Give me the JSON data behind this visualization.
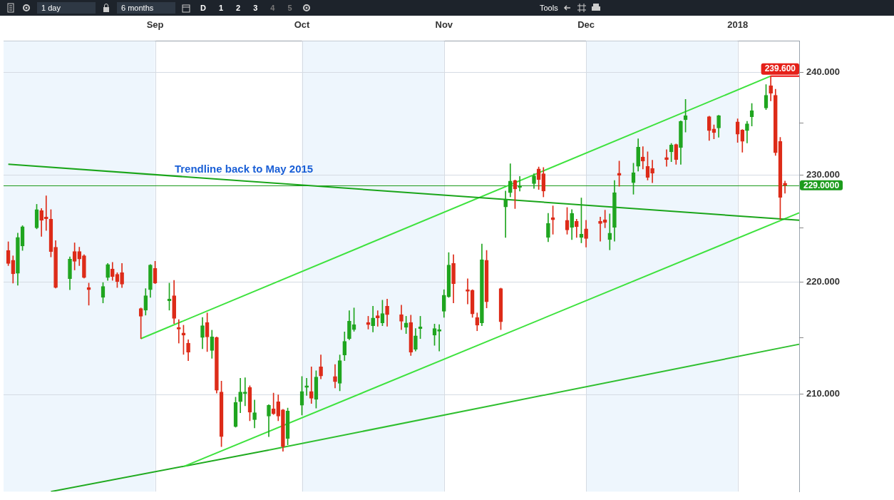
{
  "chart_data": {
    "type": "candlestick",
    "x": [
      "2017-08-01",
      "2017-08-02",
      "2017-08-03",
      "2017-08-04",
      "2017-08-07",
      "2017-08-08",
      "2017-08-09",
      "2017-08-10",
      "2017-08-11",
      "2017-08-14",
      "2017-08-15",
      "2017-08-16",
      "2017-08-17",
      "2017-08-18",
      "2017-08-21",
      "2017-08-22",
      "2017-08-23",
      "2017-08-24",
      "2017-08-25",
      "2017-08-29",
      "2017-08-30",
      "2017-08-31",
      "2017-09-01",
      "2017-09-04",
      "2017-09-05",
      "2017-09-06",
      "2017-09-07",
      "2017-09-08",
      "2017-09-11",
      "2017-09-12",
      "2017-09-13",
      "2017-09-14",
      "2017-09-15",
      "2017-09-18",
      "2017-09-19",
      "2017-09-20",
      "2017-09-21",
      "2017-09-22",
      "2017-09-25",
      "2017-09-26",
      "2017-09-27",
      "2017-09-28",
      "2017-09-29",
      "2017-10-02",
      "2017-10-03",
      "2017-10-04",
      "2017-10-05",
      "2017-10-06",
      "2017-10-09",
      "2017-10-10",
      "2017-10-11",
      "2017-10-12",
      "2017-10-13",
      "2017-10-16",
      "2017-10-17",
      "2017-10-18",
      "2017-10-19",
      "2017-10-20",
      "2017-10-23",
      "2017-10-24",
      "2017-10-25",
      "2017-10-26",
      "2017-10-27",
      "2017-10-30",
      "2017-10-31",
      "2017-11-01",
      "2017-11-02",
      "2017-11-03",
      "2017-11-06",
      "2017-11-07",
      "2017-11-08",
      "2017-11-09",
      "2017-11-10",
      "2017-11-13",
      "2017-11-14",
      "2017-11-15",
      "2017-11-16",
      "2017-11-17",
      "2017-11-20",
      "2017-11-21",
      "2017-11-22",
      "2017-11-23",
      "2017-11-24",
      "2017-11-27",
      "2017-11-28",
      "2017-11-29",
      "2017-11-30",
      "2017-12-01",
      "2017-12-04",
      "2017-12-05",
      "2017-12-06",
      "2017-12-07",
      "2017-12-08",
      "2017-12-11",
      "2017-12-12",
      "2017-12-13",
      "2017-12-14",
      "2017-12-15",
      "2017-12-18",
      "2017-12-19",
      "2017-12-20",
      "2017-12-21",
      "2017-12-22",
      "2017-12-27",
      "2017-12-28",
      "2017-12-29",
      "2018-01-02",
      "2018-01-03",
      "2018-01-04",
      "2018-01-05",
      "2018-01-08",
      "2018-01-09",
      "2018-01-10",
      "2018-01-11",
      "2018-01-12"
    ],
    "ohlc": [
      [
        222.9,
        223.7,
        221.5,
        221.7
      ],
      [
        222.0,
        222.4,
        219.9,
        220.75
      ],
      [
        220.8,
        224.5,
        219.7,
        224.1
      ],
      [
        223.3,
        225.2,
        222.9,
        225.1
      ],
      [
        225.0,
        227.2,
        224.9,
        226.7
      ],
      [
        226.6,
        226.8,
        224.2,
        225.7
      ],
      [
        226.0,
        228.0,
        224.75,
        225.85
      ],
      [
        225.8,
        226.7,
        222.3,
        222.8
      ],
      [
        223.2,
        223.8,
        219.45,
        219.5
      ],
      [
        220.3,
        222.3,
        219.3,
        222.1
      ],
      [
        222.8,
        223.6,
        221.1,
        221.9
      ],
      [
        222.8,
        223.2,
        221.5,
        222.1
      ],
      [
        222.4,
        222.5,
        220.35,
        220.4
      ],
      [
        219.5,
        219.9,
        217.9,
        219.3
      ],
      [
        218.6,
        219.95,
        218.1,
        219.6
      ],
      [
        220.4,
        221.7,
        220.15,
        221.6
      ],
      [
        221.2,
        221.8,
        220.15,
        220.5
      ],
      [
        220.7,
        220.85,
        219.5,
        220.05
      ],
      [
        220.85,
        221.7,
        219.5,
        219.8
      ],
      [
        217.6,
        217.65,
        214.9,
        216.9
      ],
      [
        217.45,
        219.4,
        217.0,
        218.75
      ],
      [
        219.3,
        221.6,
        218.6,
        221.55
      ],
      [
        221.25,
        221.9,
        219.85,
        219.9
      ],
      [
        218.3,
        219.9,
        217.45,
        218.45
      ],
      [
        218.75,
        220.15,
        216.25,
        216.7
      ],
      [
        215.9,
        216.6,
        214.5,
        215.75
      ],
      [
        215.4,
        216.1,
        213.5,
        215.2
      ],
      [
        214.5,
        214.8,
        212.95,
        213.7
      ],
      [
        215.0,
        216.8,
        214.0,
        216.05
      ],
      [
        216.35,
        217.2,
        213.75,
        215.05
      ],
      [
        213.85,
        215.65,
        213.15,
        215.05
      ],
      [
        215.0,
        215.05,
        210.1,
        210.35
      ],
      [
        210.2,
        211.15,
        205.5,
        206.35
      ],
      [
        207.2,
        209.75,
        207.15,
        209.3
      ],
      [
        209.35,
        211.4,
        208.4,
        210.2
      ],
      [
        210.05,
        211.45,
        209.0,
        210.2
      ],
      [
        210.6,
        210.75,
        207.7,
        208.45
      ],
      [
        207.8,
        209.5,
        207.1,
        208.4
      ],
      [
        208.1,
        209.1,
        206.35,
        209.05
      ],
      [
        208.75,
        210.1,
        208.25,
        208.3
      ],
      [
        209.35,
        209.95,
        207.7,
        208.1
      ],
      [
        208.65,
        208.7,
        205.1,
        205.5
      ],
      [
        206.2,
        208.8,
        205.65,
        208.55
      ],
      [
        209.05,
        211.55,
        208.2,
        210.25
      ],
      [
        210.6,
        211.4,
        209.9,
        210.75
      ],
      [
        210.25,
        212.4,
        209.2,
        209.65
      ],
      [
        209.55,
        212.05,
        208.8,
        211.5
      ],
      [
        212.4,
        213.45,
        211.35,
        211.6
      ],
      [
        211.55,
        212.6,
        210.55,
        211.1
      ],
      [
        210.95,
        213.45,
        210.3,
        212.95
      ],
      [
        213.45,
        215.5,
        212.95,
        214.65
      ],
      [
        214.9,
        217.4,
        214.8,
        216.45
      ],
      [
        215.7,
        217.65,
        215.55,
        216.15
      ],
      [
        216.35,
        216.9,
        215.75,
        216.15
      ],
      [
        216.05,
        217.8,
        215.5,
        216.75
      ],
      [
        216.95,
        217.4,
        216.0,
        216.75
      ],
      [
        216.3,
        218.35,
        216.05,
        217.15
      ],
      [
        217.8,
        218.45,
        216.0,
        217.05
      ],
      [
        217.05,
        217.9,
        215.7,
        216.45
      ],
      [
        215.9,
        216.9,
        215.35,
        216.3
      ],
      [
        216.35,
        217.0,
        213.4,
        213.7
      ],
      [
        213.95,
        215.8,
        213.8,
        215.15
      ],
      [
        215.8,
        216.9,
        214.9,
        215.95
      ],
      [
        215.2,
        216.2,
        214.3,
        215.8
      ],
      [
        215.55,
        216.15,
        213.8,
        215.7
      ],
      [
        217.35,
        219.3,
        216.8,
        218.8
      ],
      [
        218.65,
        222.7,
        218.6,
        221.55
      ],
      [
        221.7,
        222.5,
        218.1,
        219.85
      ],
      [
        219.3,
        220.3,
        218.0,
        219.15
      ],
      [
        219.25,
        219.3,
        216.8,
        217.1
      ],
      [
        216.8,
        217.2,
        215.6,
        216.1
      ],
      [
        216.3,
        223.5,
        216.05,
        222.05
      ],
      [
        222.0,
        222.9,
        217.65,
        218.2
      ],
      [
        219.4,
        219.45,
        215.7,
        216.4
      ],
      [
        226.95,
        228.45,
        224.1,
        227.7
      ],
      [
        228.3,
        231.05,
        227.9,
        229.4
      ],
      [
        229.45,
        229.5,
        226.8,
        228.65
      ],
      [
        228.8,
        229.85,
        228.45,
        228.95
      ],
      [
        229.15,
        230.1,
        228.7,
        229.9
      ],
      [
        230.55,
        230.75,
        228.6,
        229.55
      ],
      [
        230.1,
        230.7,
        227.9,
        228.45
      ],
      [
        224.1,
        226.35,
        223.7,
        225.4
      ],
      [
        225.95,
        227.05,
        224.4,
        225.75
      ],
      [
        225.7,
        226.9,
        224.4,
        224.8
      ],
      [
        225.05,
        226.7,
        223.9,
        226.35
      ],
      [
        225.6,
        225.8,
        224.1,
        225.1
      ],
      [
        224.1,
        227.8,
        223.6,
        224.4
      ],
      [
        224.9,
        225.7,
        223.2,
        224.0
      ],
      [
        225.6,
        226.0,
        223.75,
        225.4
      ],
      [
        225.75,
        226.65,
        225.0,
        225.5
      ],
      [
        223.9,
        226.3,
        222.95,
        224.5
      ],
      [
        225.05,
        229.45,
        223.75,
        228.3
      ],
      [
        230.15,
        231.3,
        228.9,
        229.95
      ],
      [
        229.25,
        231.1,
        228.15,
        230.2
      ],
      [
        230.8,
        233.45,
        230.35,
        232.65
      ],
      [
        231.7,
        232.7,
        230.55,
        231.3
      ],
      [
        230.8,
        232.2,
        229.5,
        229.75
      ],
      [
        230.6,
        231.4,
        229.25,
        230.15
      ],
      [
        231.65,
        232.4,
        230.8,
        231.45
      ],
      [
        232.2,
        233.0,
        231.25,
        232.85
      ],
      [
        232.9,
        232.95,
        231.0,
        231.45
      ],
      [
        232.6,
        235.2,
        231.0,
        235.15
      ],
      [
        235.3,
        237.3,
        234.1,
        235.7
      ],
      [
        235.6,
        235.65,
        233.3,
        234.25
      ],
      [
        234.4,
        234.8,
        233.45,
        234.05
      ],
      [
        234.5,
        235.75,
        233.6,
        235.7
      ],
      [
        235.1,
        235.4,
        233.1,
        233.9
      ],
      [
        234.3,
        234.35,
        232.15,
        233.2
      ],
      [
        234.25,
        235.15,
        233.05,
        234.9
      ],
      [
        235.6,
        236.9,
        234.7,
        236.2
      ],
      [
        236.45,
        238.75,
        236.3,
        237.7
      ],
      [
        238.65,
        239.6,
        237.15,
        237.9
      ],
      [
        237.7,
        238.3,
        231.85,
        232.1
      ],
      [
        233.2,
        233.6,
        225.8,
        227.85
      ],
      [
        229.2,
        229.4,
        228.25,
        229.0
      ]
    ],
    "colors": [
      "#dd2b18",
      "#dd2b18",
      "#1fa51f",
      "#1fa51f",
      "#1fa51f",
      "#dd2b18",
      "#dd2b18",
      "#dd2b18",
      "#dd2b18",
      "#1fa51f",
      "#dd2b18",
      "#dd2b18",
      "#dd2b18",
      "#dd2b18",
      "#1fa51f",
      "#1fa51f",
      "#dd2b18",
      "#dd2b18",
      "#dd2b18",
      "#dd2b18",
      "#1fa51f",
      "#1fa51f",
      "#dd2b18",
      "#1fa51f",
      "#dd2b18",
      "#dd2b18",
      "#dd2b18",
      "#dd2b18",
      "#1fa51f",
      "#dd2b18",
      "#1fa51f",
      "#dd2b18",
      "#dd2b18",
      "#1fa51f",
      "#1fa51f",
      "#1fa51f",
      "#dd2b18",
      "#1fa51f",
      "#1fa51f",
      "#dd2b18",
      "#dd2b18",
      "#dd2b18",
      "#1fa51f",
      "#1fa51f",
      "#1fa51f",
      "#dd2b18",
      "#1fa51f",
      "#dd2b18",
      "#dd2b18",
      "#1fa51f",
      "#1fa51f",
      "#1fa51f",
      "#1fa51f",
      "#dd2b18",
      "#1fa51f",
      "#dd2b18",
      "#1fa51f",
      "#dd2b18",
      "#dd2b18",
      "#1fa51f",
      "#dd2b18",
      "#1fa51f",
      "#1fa51f",
      "#1fa51f",
      "#1fa51f",
      "#1fa51f",
      "#1fa51f",
      "#dd2b18",
      "#dd2b18",
      "#dd2b18",
      "#dd2b18",
      "#1fa51f",
      "#dd2b18",
      "#dd2b18",
      "#1fa51f",
      "#1fa51f",
      "#dd2b18",
      "#1fa51f",
      "#1fa51f",
      "#dd2b18",
      "#dd2b18",
      "#1fa51f",
      "#dd2b18",
      "#dd2b18",
      "#1fa51f",
      "#dd2b18",
      "#1fa51f",
      "#dd2b18",
      "#dd2b18",
      "#dd2b18",
      "#1fa51f",
      "#1fa51f",
      "#dd2b18",
      "#1fa51f",
      "#1fa51f",
      "#dd2b18",
      "#dd2b18",
      "#dd2b18",
      "#dd2b18",
      "#1fa51f",
      "#dd2b18",
      "#1fa51f",
      "#1fa51f",
      "#dd2b18",
      "#dd2b18",
      "#1fa51f",
      "#dd2b18",
      "#dd2b18",
      "#1fa51f",
      "#1fa51f",
      "#1fa51f",
      "#dd2b18",
      "#dd2b18",
      "#dd2b18",
      "#dd2b18"
    ],
    "series": [
      {
        "type": "line",
        "x": [
          "2017-08-01",
          "2018-01-15"
        ],
        "values": [
          231.0,
          225.7
        ],
        "color": "#1aa51a"
      },
      {
        "type": "line",
        "x": [
          "2017-08-29",
          "2018-01-09"
        ],
        "values": [
          214.9,
          239.6
        ],
        "color": "#3ee23e"
      },
      {
        "type": "line",
        "x": [
          "2017-09-07",
          "2018-01-15"
        ],
        "values": [
          203.8,
          226.4
        ],
        "color": "#3ee23e"
      },
      {
        "type": "line",
        "x": [
          "2017-08-10",
          "2017-09-25"
        ],
        "values": [
          201.7,
          205.2
        ],
        "color": "#1faa1f"
      },
      {
        "type": "line",
        "x": [
          "2017-09-25",
          "2018-01-15"
        ],
        "values": [
          205.2,
          214.4
        ],
        "color": "#2fbf2f"
      },
      {
        "type": "line",
        "x": [
          "2018-01-09",
          "2018-01-15"
        ],
        "values": [
          239.6,
          239.6
        ],
        "color": "#ee1111"
      }
    ],
    "xlim": [
      "2017-07-31",
      "2018-01-15"
    ],
    "xticks": [
      {
        "value": "2017-09-01",
        "label": "Sep"
      },
      {
        "value": "2017-10-02",
        "label": "Oct"
      },
      {
        "value": "2017-11-01",
        "label": "Nov"
      },
      {
        "value": "2017-12-01",
        "label": "Dec"
      },
      {
        "value": "2018-01-02",
        "label": "2018"
      }
    ],
    "ylim": [
      201.7,
      243.1
    ],
    "yticks": [
      {
        "value": 210,
        "label": "210.000"
      },
      {
        "value": 215,
        "label": null
      },
      {
        "value": 220,
        "label": "220.000"
      },
      {
        "value": 225,
        "label": null
      },
      {
        "value": 230,
        "label": "230.000"
      },
      {
        "value": 235,
        "label": null
      },
      {
        "value": 240,
        "label": "240.000"
      }
    ],
    "log": true,
    "grid": true,
    "legend": false,
    "bands": [
      {
        "axis": "x",
        "from": "2017-07-31",
        "to": "2017-09-01",
        "color": "#eef6fd"
      },
      {
        "axis": "x",
        "from": "2017-10-02",
        "to": "2017-11-01",
        "color": "#eef6fd"
      },
      {
        "axis": "x",
        "from": "2017-12-01",
        "to": "2018-01-02",
        "color": "#eef6fd"
      }
    ],
    "ref_lines": [
      {
        "axis": "y",
        "value": 229,
        "label": "229.0000",
        "color": "#1c9b1c"
      }
    ],
    "annotations": [
      "Trendline back to May 2015",
      {
        "text": "239.600",
        "x": "2018-01-15",
        "y": 239.6
      },
      "1 day",
      "6 months",
      "D",
      "1",
      "2",
      "3",
      "4",
      "5",
      "Tools"
    ]
  }
}
